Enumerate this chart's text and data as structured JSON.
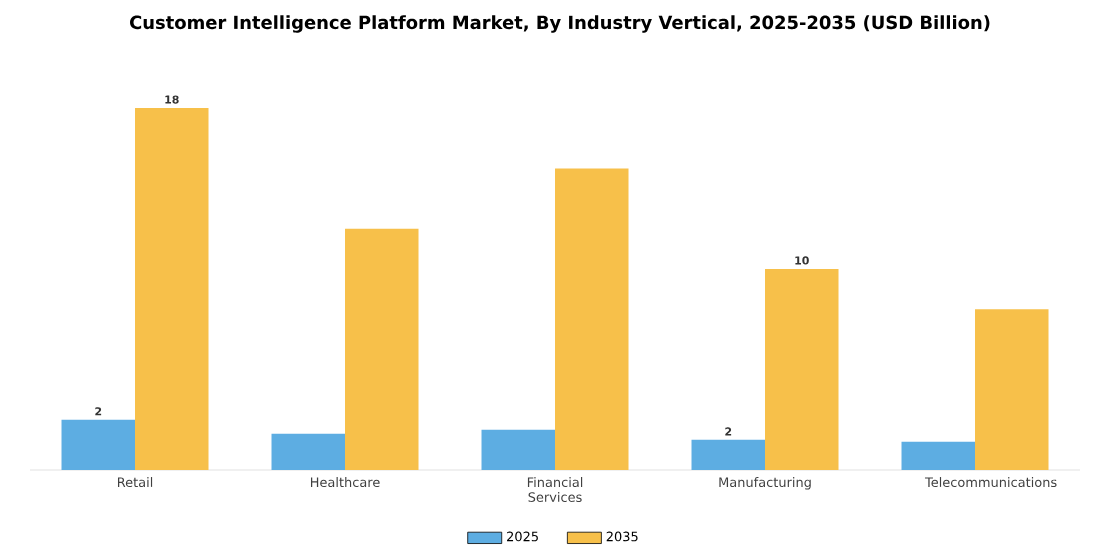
{
  "chart_data": {
    "type": "bar",
    "title": "Customer Intelligence Platform Market, By Industry Vertical, 2025-2035 (USD Billion)",
    "categories": [
      "Retail",
      "Healthcare",
      "Financial Services",
      "Manufacturing",
      "Telecommunications"
    ],
    "series": [
      {
        "name": "2025",
        "color": "#5dade2",
        "values": [
          2.5,
          1.8,
          2.0,
          1.5,
          1.4
        ],
        "value_labels": [
          "2",
          null,
          null,
          "2",
          null
        ]
      },
      {
        "name": "2035",
        "color": "#f7c04a",
        "values": [
          18,
          12,
          15,
          10,
          8
        ],
        "value_labels": [
          "18",
          null,
          null,
          "10",
          null
        ]
      }
    ],
    "legend": "bottom"
  }
}
